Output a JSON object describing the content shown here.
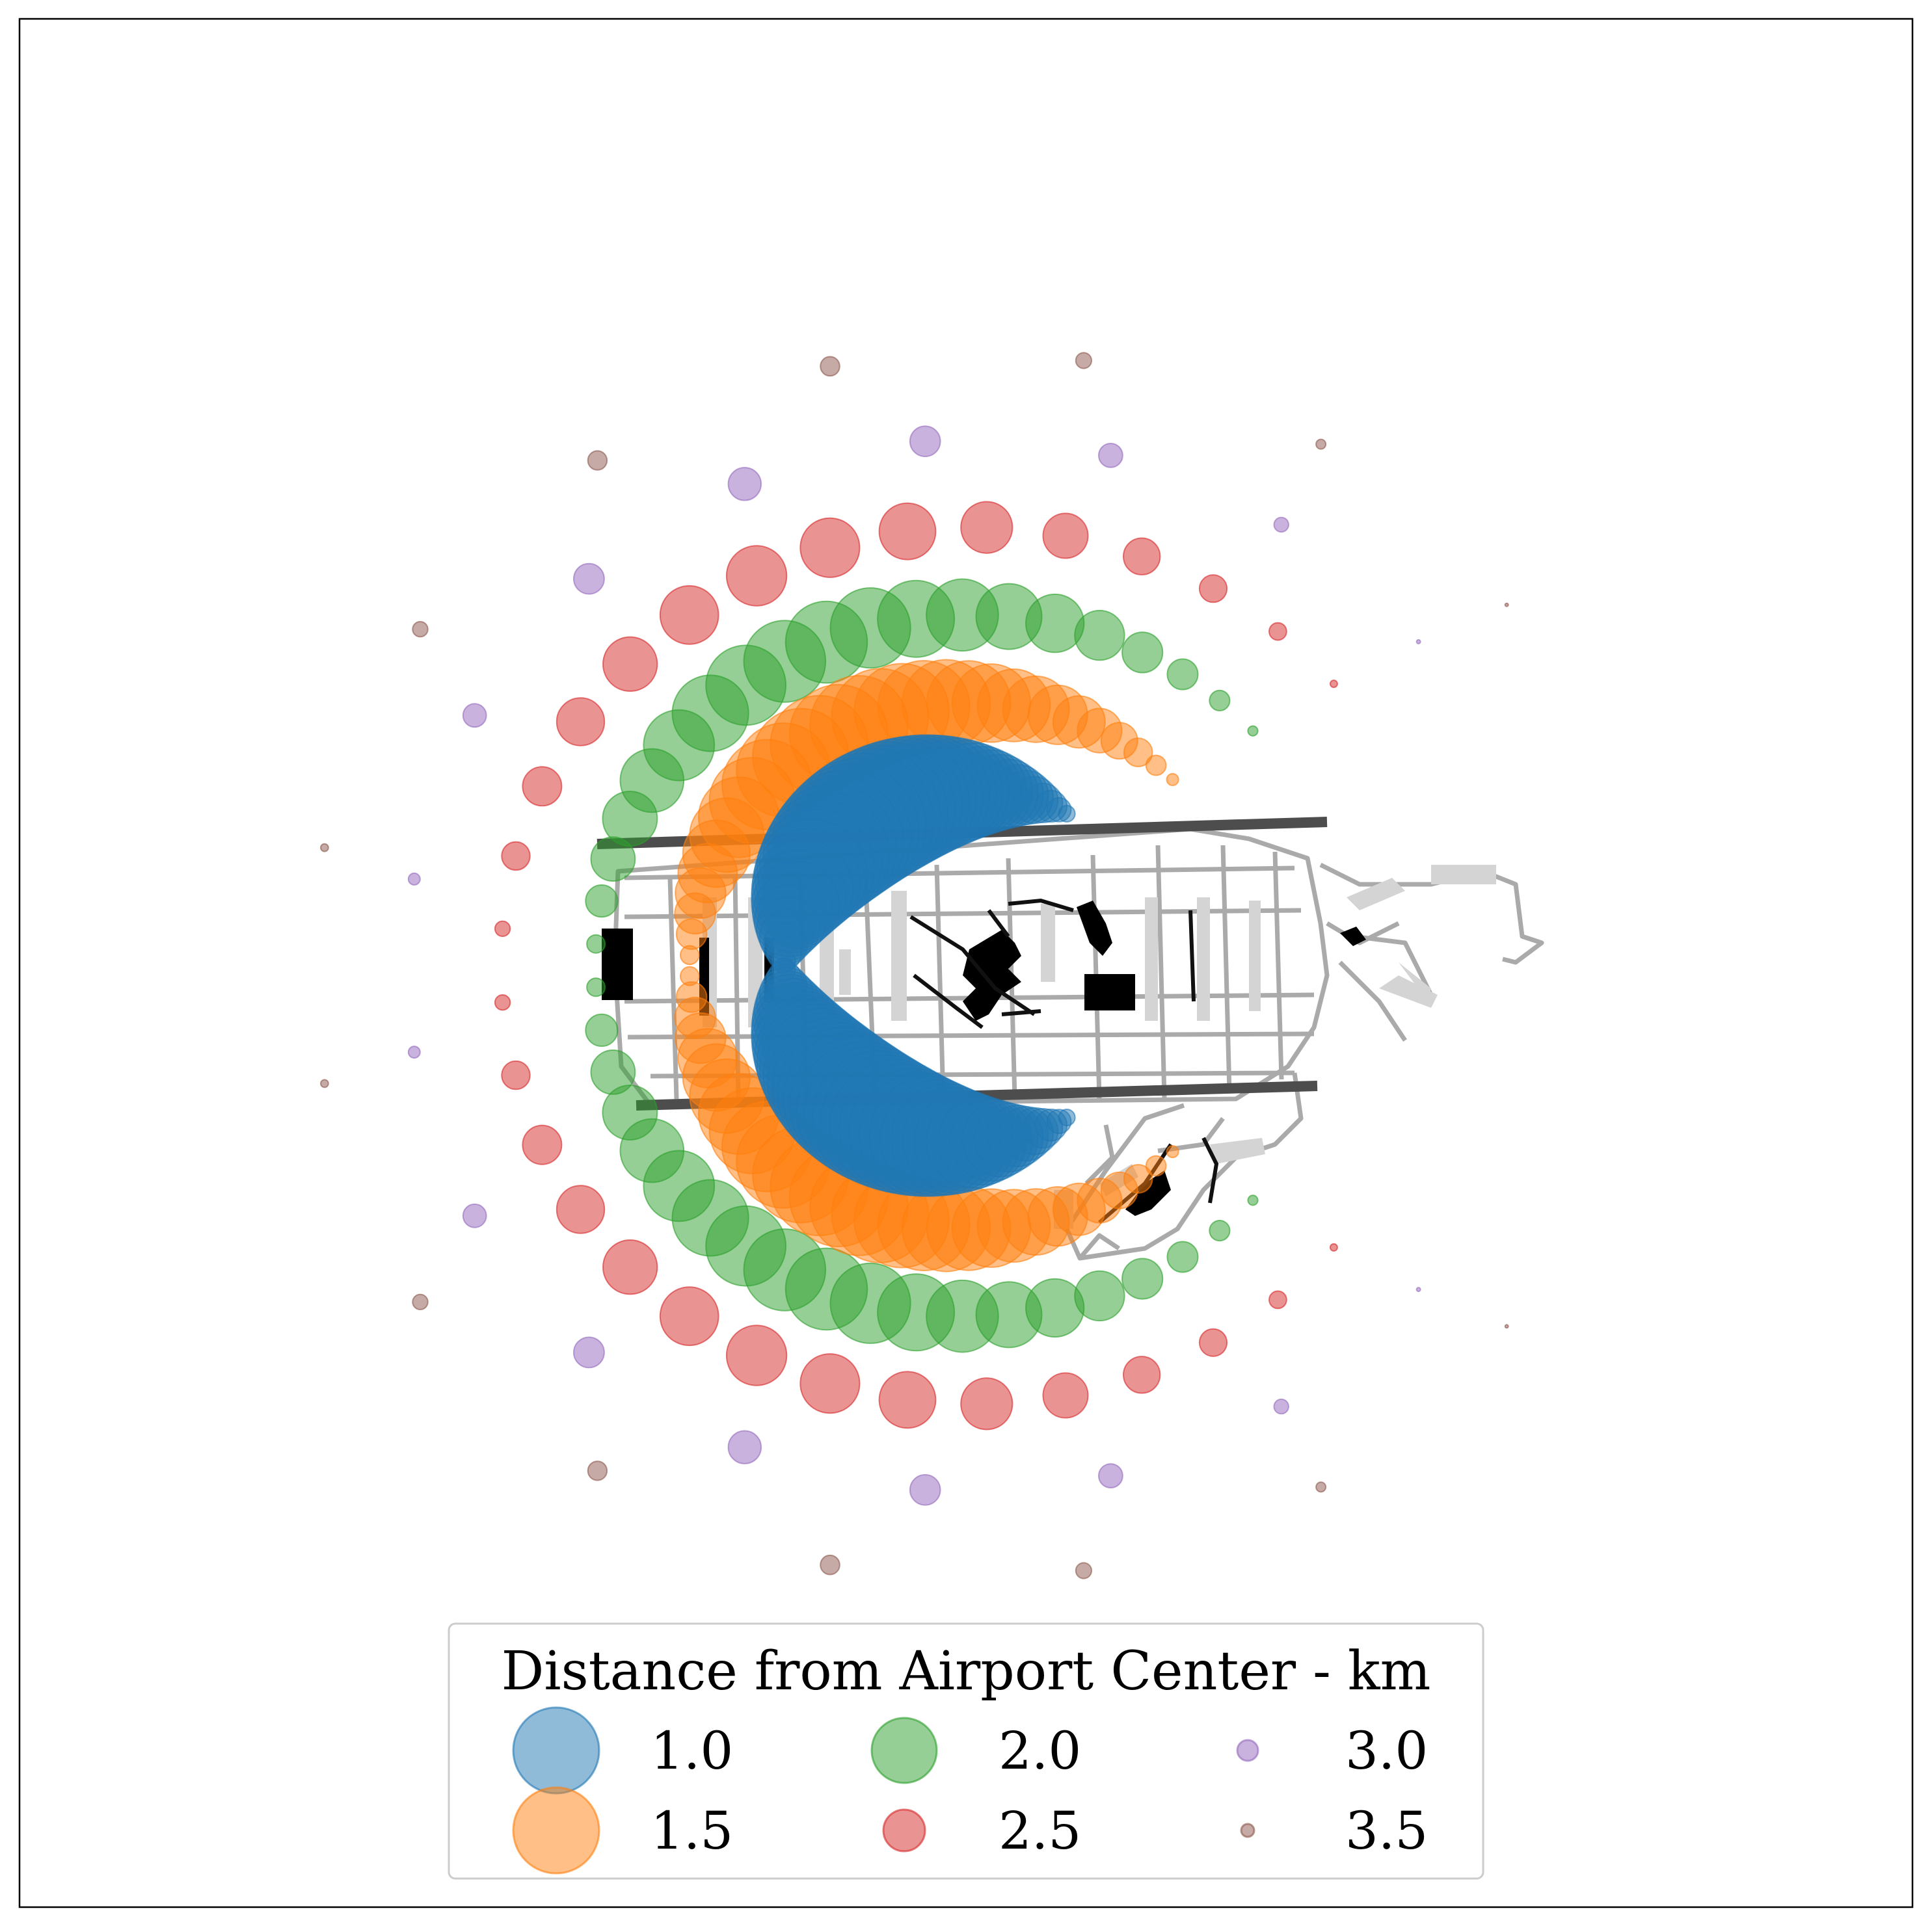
{
  "chart_data": {
    "type": "scatter",
    "title": "",
    "xlabel": "",
    "ylabel": "",
    "grid": false,
    "axes_visible": false,
    "legend": {
      "title": "Distance from Airport Center - km",
      "placement": "bottom-center",
      "columns": 3
    },
    "series": [
      {
        "name": "1.0",
        "distance_km": 1.0,
        "color": "#1f77b4",
        "arc_span_deg": [
          -120,
          120
        ],
        "points": 90,
        "peak_marker_size": 1.0
      },
      {
        "name": "1.5",
        "distance_km": 1.5,
        "color": "#ff7f0e",
        "arc_span_deg": [
          -135,
          135
        ],
        "points": 60,
        "peak_marker_size": 0.9
      },
      {
        "name": "2.0",
        "distance_km": 2.0,
        "color": "#2ca02c",
        "arc_span_deg": [
          -138,
          138
        ],
        "points": 40,
        "peak_marker_size": 0.75
      },
      {
        "name": "2.5",
        "distance_km": 2.5,
        "color": "#d62728",
        "arc_span_deg": [
          -140,
          140
        ],
        "points": 30,
        "peak_marker_size": 0.55
      },
      {
        "name": "3.0",
        "distance_km": 3.0,
        "color": "#9467bd",
        "arc_span_deg": [
          -142,
          142
        ],
        "points": 16,
        "peak_marker_size": 0.3
      },
      {
        "name": "3.5",
        "distance_km": 3.5,
        "color": "#8c564b",
        "arc_span_deg": [
          -144,
          144
        ],
        "points": 14,
        "peak_marker_size": 0.18
      }
    ],
    "notes_visible": "Airport map with runways (dark grey), taxiways (light grey) and terminal buildings (black) drawn underneath the markers"
  }
}
